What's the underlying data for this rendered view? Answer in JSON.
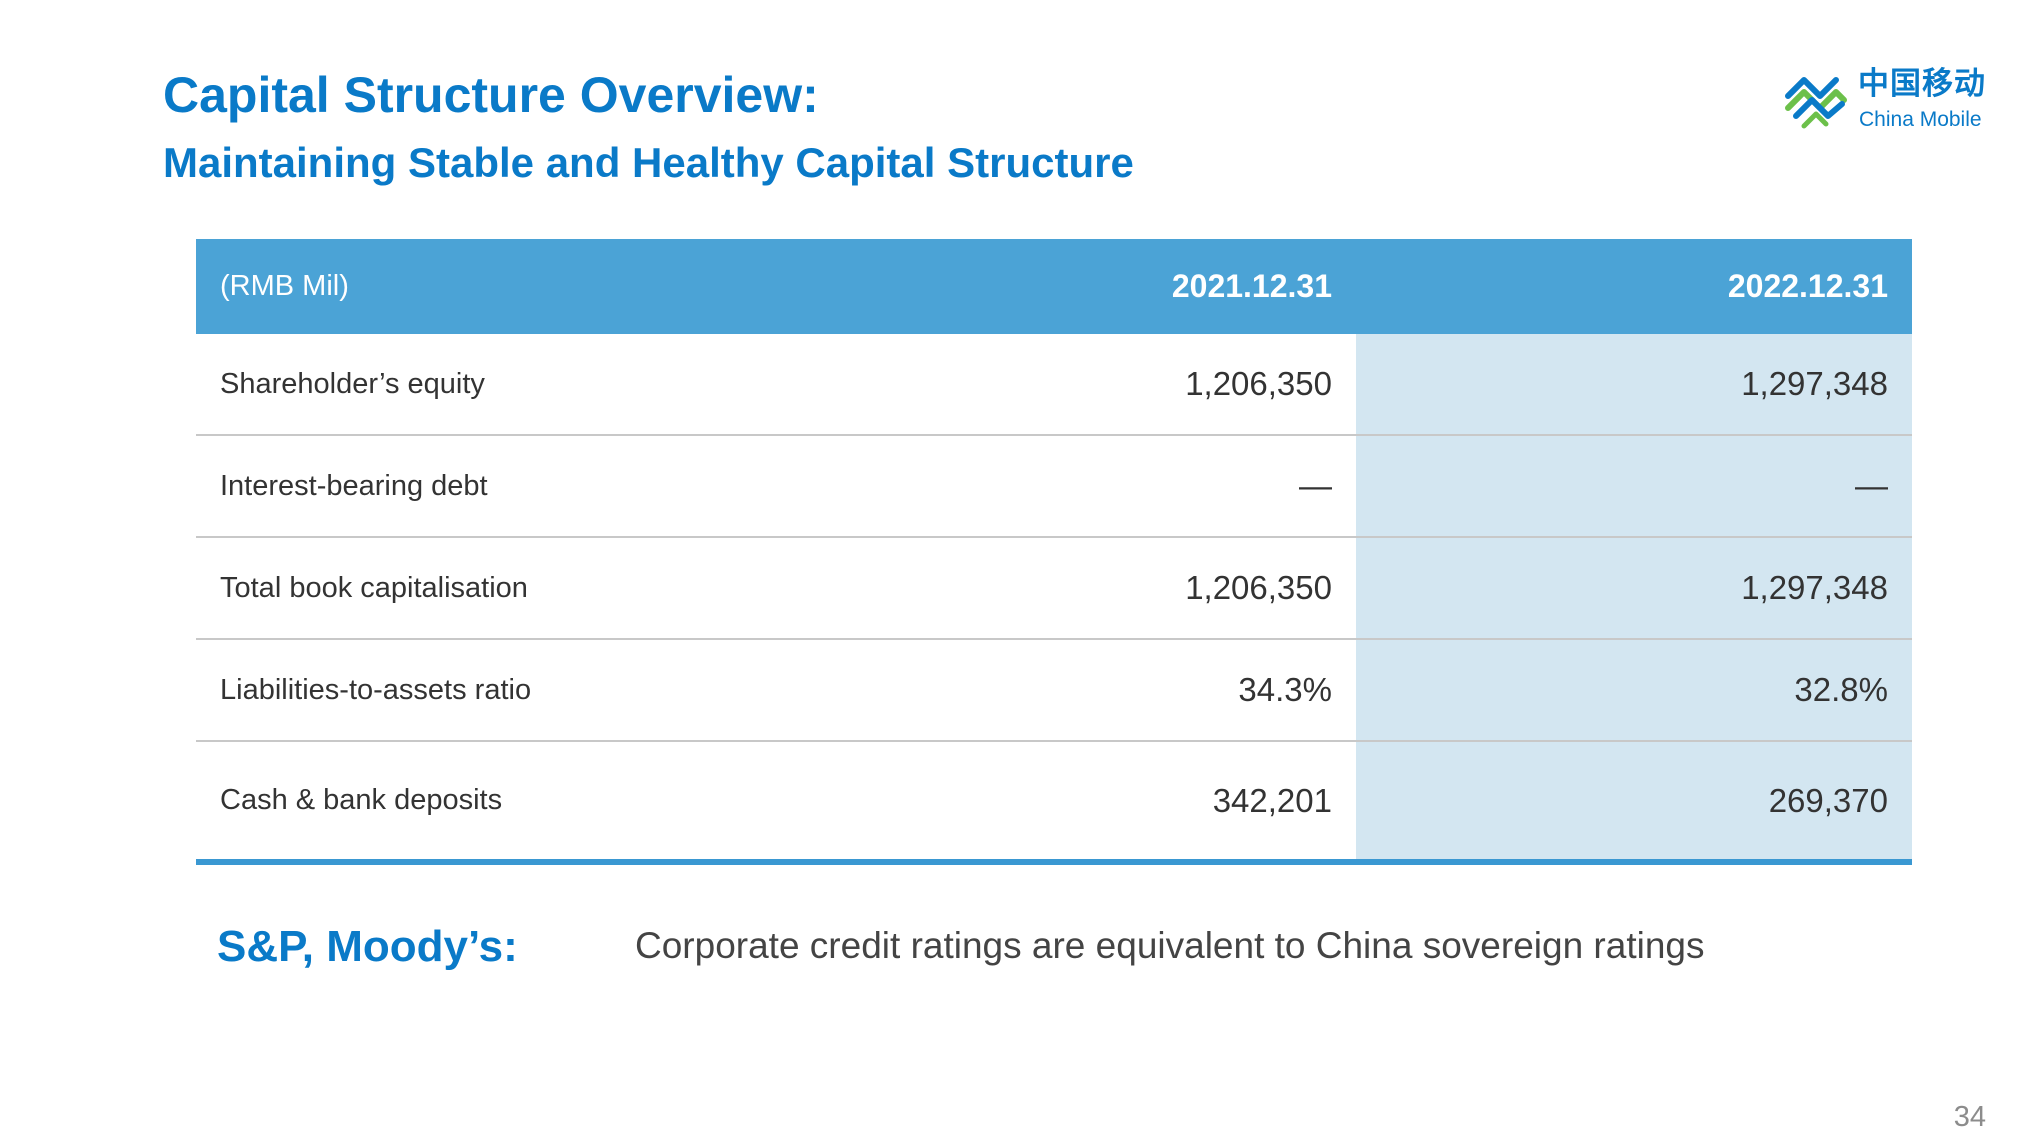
{
  "slide": {
    "title": "Capital Structure Overview:",
    "subtitle": "Maintaining Stable and Healthy Capital Structure",
    "page_number": "34"
  },
  "logo": {
    "chinese_name": "中国移动",
    "english_name": "China Mobile",
    "brand_color": "#0a7ac8"
  },
  "table": {
    "headers": {
      "label": "(RMB Mil)",
      "col_2021": "2021.12.31",
      "col_2022": "2022.12.31"
    },
    "rows": [
      {
        "label": "Shareholder’s equity",
        "v2021": "1,206,350",
        "v2022": "1,297,348"
      },
      {
        "label": "Interest-bearing debt",
        "v2021": "—",
        "v2022": "—"
      },
      {
        "label": "Total book capitalisation",
        "v2021": "1,206,350",
        "v2022": "1,297,348"
      },
      {
        "label": "Liabilities-to-assets ratio",
        "v2021": "34.3%",
        "v2022": "32.8%"
      },
      {
        "label": "Cash & bank deposits",
        "v2021": "342,201",
        "v2022": "269,370"
      }
    ],
    "colors": {
      "header_bg": "#4ba3d6",
      "highlight_column_bg": "#d3e6f1",
      "bottom_rule": "#3a98d2"
    }
  },
  "ratings": {
    "label": "S&P, Moody’s:",
    "text": "Corporate credit ratings are equivalent to China sovereign ratings"
  }
}
